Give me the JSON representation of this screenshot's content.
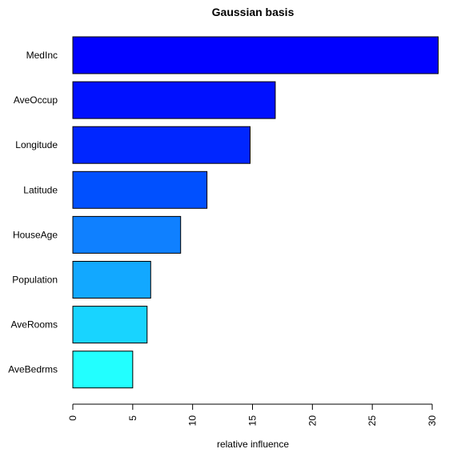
{
  "chart_data": {
    "type": "bar",
    "orientation": "horizontal",
    "title": "Gaussian basis",
    "xlabel": "relative influence",
    "ylabel": "",
    "xlim": [
      0,
      30
    ],
    "ticks": [
      "0",
      "5",
      "10",
      "15",
      "20",
      "25",
      "30"
    ],
    "tick_values": [
      0,
      5,
      10,
      15,
      20,
      25,
      30
    ],
    "categories": [
      "MedInc",
      "AveOccup",
      "Longitude",
      "Latitude",
      "HouseAge",
      "Population",
      "AveRooms",
      "AveBedrms"
    ],
    "values": [
      30.5,
      16.9,
      14.8,
      11.2,
      9.0,
      6.5,
      6.2,
      5.0
    ],
    "colors": [
      "#0000FF",
      "#0010FF",
      "#0026FF",
      "#0050FF",
      "#0F80FF",
      "#12A8FF",
      "#18D4FF",
      "#22FFFF"
    ],
    "grid": false,
    "legend": "none"
  }
}
